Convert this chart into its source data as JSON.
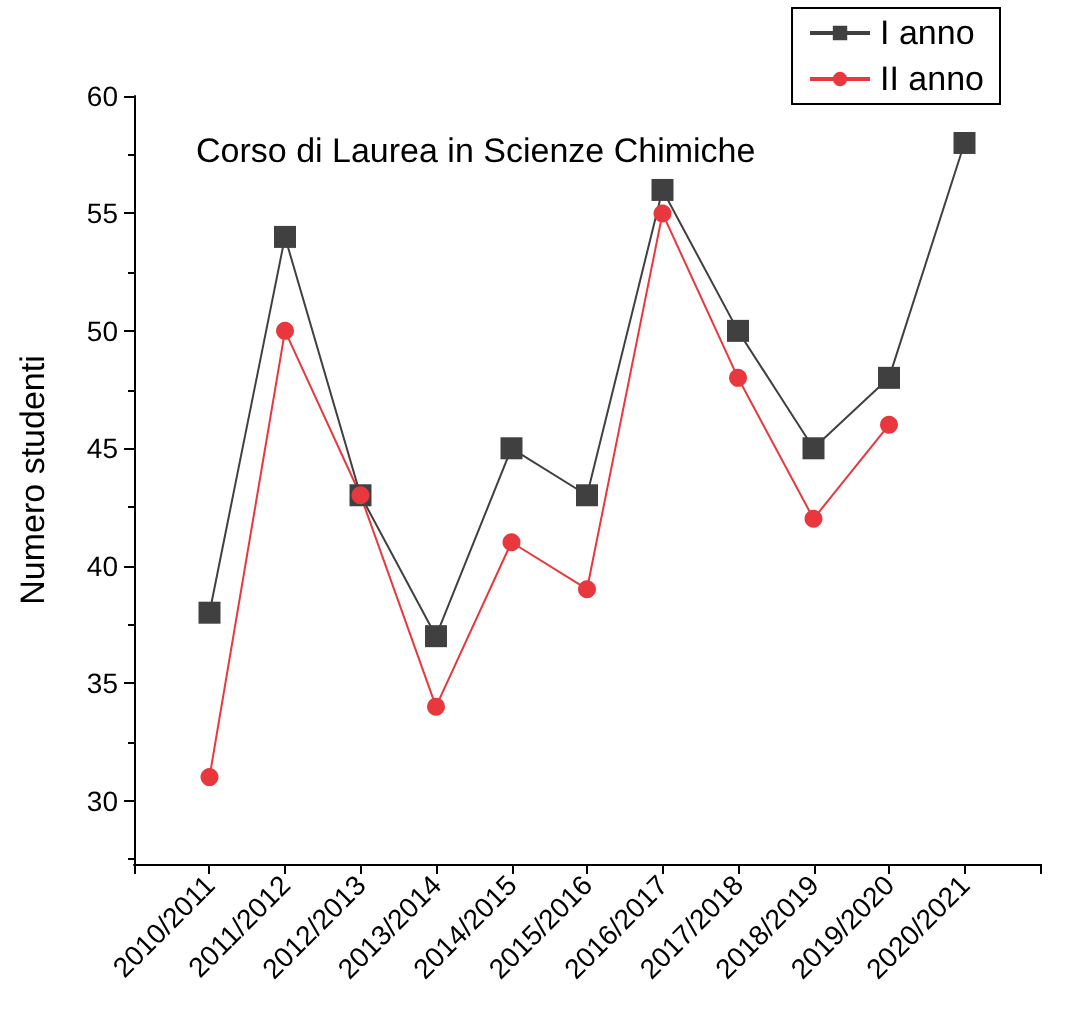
{
  "chart_data": {
    "type": "line",
    "title": "Corso di Laurea in Scienze Chimiche",
    "ylabel": "Numero studenti",
    "categories": [
      "2010/2011",
      "2011/2012",
      "2012/2013",
      "2013/2014",
      "2014/2015",
      "2015/2016",
      "2016/2017",
      "2017/2018",
      "2018/2019",
      "2019/2020",
      "2020/2021"
    ],
    "series": [
      {
        "name": "I anno",
        "color": "#404040",
        "marker": "square",
        "values": [
          38,
          54,
          43,
          37,
          45,
          43,
          56,
          50,
          45,
          48,
          58
        ]
      },
      {
        "name": "II anno",
        "color": "#e8383d",
        "marker": "circle",
        "values": [
          31,
          50,
          43,
          34,
          41,
          39,
          55,
          48,
          42,
          46,
          null
        ]
      }
    ],
    "ylim": [
      27.3,
      60
    ],
    "yticks": [
      30,
      35,
      40,
      45,
      50,
      55,
      60
    ],
    "grid": false,
    "legend": "top right"
  }
}
